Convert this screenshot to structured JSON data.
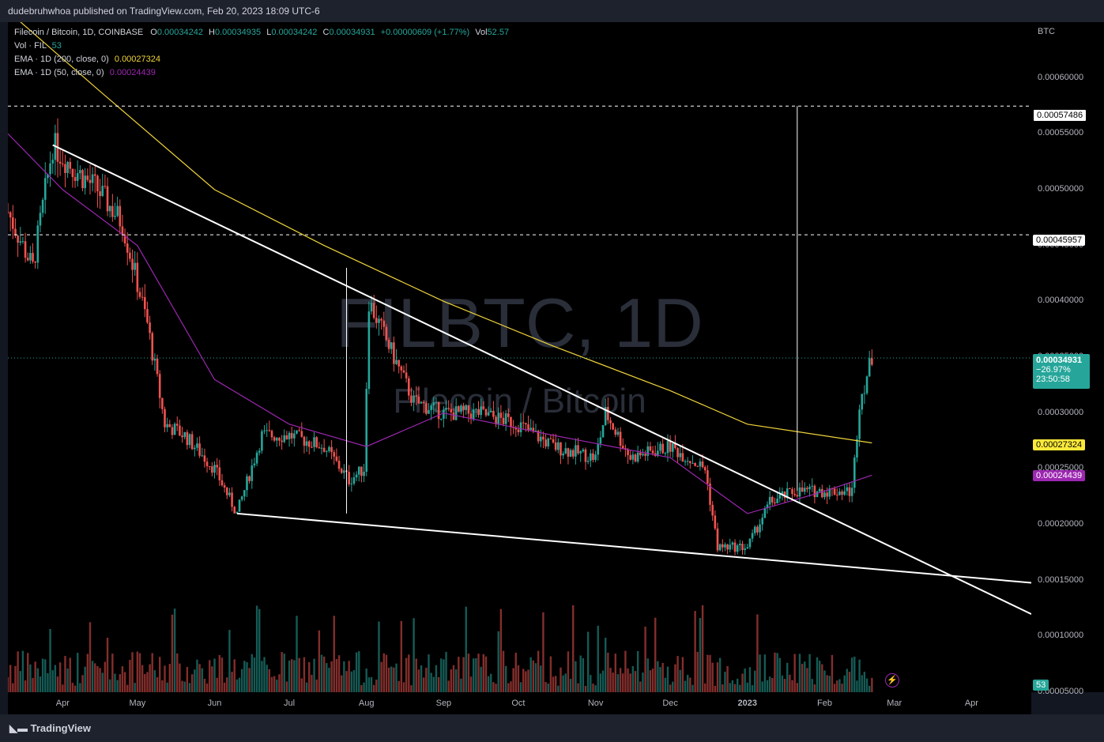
{
  "header": {
    "published": "dudebruhwhoa published on TradingView.com, Feb 20, 2023 18:09 UTC-6"
  },
  "legend": {
    "symbol": "Filecoin / Bitcoin, 1D, COINBASE",
    "o_label": "O",
    "o_value": "0.00034242",
    "h_label": "H",
    "h_value": "0.00034935",
    "l_label": "L",
    "l_value": "0.00034242",
    "c_label": "C",
    "c_value": "0.00034931",
    "change": "+0.00000609 (+1.77%)",
    "vol_label": "Vol",
    "vol_value": "52.57",
    "vol_fil_label": "Vol · FIL",
    "vol_fil_value": "53",
    "ema200_label": "EMA · 1D (200, close, 0)",
    "ema200_value": "0.00027324",
    "ema50_label": "EMA · 1D (50, close, 0)",
    "ema50_value": "0.00024439"
  },
  "watermark": {
    "title": "FILBTC, 1D",
    "subtitle": "Filecoin / Bitcoin"
  },
  "axis": {
    "currency": "BTC",
    "price_ticks": [
      "0.00060000",
      "0.00055000",
      "0.00050000",
      "0.00045000",
      "0.00040000",
      "0.00035000",
      "0.00030000",
      "0.00025000",
      "0.00020000",
      "0.00015000",
      "0.00010000",
      "0.00005000"
    ],
    "months": [
      "Apr",
      "May",
      "Jun",
      "Jul",
      "Aug",
      "Sep",
      "Oct",
      "Nov",
      "Dec",
      "2023",
      "Feb",
      "Mar",
      "Apr"
    ]
  },
  "tags": {
    "level_high": "0.00057486",
    "level_mid": "0.00045957",
    "last_price": "0.00034931",
    "last_change": "−26.97%",
    "countdown": "23:50:58",
    "ema200": "0.00027324",
    "ema50": "0.00024439",
    "volume": "53"
  },
  "footer": {
    "brand": "TradingView"
  },
  "colors": {
    "up": "#26a69a",
    "down": "#ef5350",
    "ema200": "#f0d43a",
    "ema50": "#9c27b0",
    "background": "#000000",
    "trendline": "#ffffff",
    "last_price_tag": "#26a69a",
    "ema200_tag": "#fbe93a",
    "ema50_tag": "#9c27b0"
  },
  "chart_data": {
    "type": "candlestick",
    "title": "FILBTC, 1D",
    "currency": "BTC",
    "ylim": [
      5e-05,
      0.00065
    ],
    "x_range": [
      "2022-03-10",
      "2023-04-25"
    ],
    "close_series": [
      [
        "2022-03-10",
        0.00048
      ],
      [
        "2022-03-20",
        0.00043
      ],
      [
        "2022-03-28",
        0.00054
      ],
      [
        "2022-04-05",
        0.00052
      ],
      [
        "2022-04-15",
        0.0005
      ],
      [
        "2022-04-25",
        0.00047
      ],
      [
        "2022-05-05",
        0.00038
      ],
      [
        "2022-05-12",
        0.00029
      ],
      [
        "2022-05-20",
        0.00028
      ],
      [
        "2022-06-01",
        0.00025
      ],
      [
        "2022-06-10",
        0.00021
      ],
      [
        "2022-06-20",
        0.00028
      ],
      [
        "2022-07-01",
        0.00028
      ],
      [
        "2022-07-15",
        0.00027
      ],
      [
        "2022-07-25",
        0.00024
      ],
      [
        "2022-07-31",
        0.00025
      ],
      [
        "2022-08-02",
        0.0004
      ],
      [
        "2022-08-10",
        0.00036
      ],
      [
        "2022-08-20",
        0.00031
      ],
      [
        "2022-09-01",
        0.0003
      ],
      [
        "2022-09-15",
        0.0003
      ],
      [
        "2022-10-01",
        0.00029
      ],
      [
        "2022-10-15",
        0.00027
      ],
      [
        "2022-11-01",
        0.00026
      ],
      [
        "2022-11-05",
        0.0003
      ],
      [
        "2022-11-15",
        0.00026
      ],
      [
        "2022-12-01",
        0.00027
      ],
      [
        "2022-12-15",
        0.00025
      ],
      [
        "2022-12-20",
        0.00018
      ],
      [
        "2023-01-01",
        0.00018
      ],
      [
        "2023-01-10",
        0.00022
      ],
      [
        "2023-01-20",
        0.00023
      ],
      [
        "2023-02-01",
        0.00023
      ],
      [
        "2023-02-12",
        0.00023
      ],
      [
        "2023-02-15",
        0.00031
      ],
      [
        "2023-02-20",
        0.00034931
      ]
    ],
    "ema200": [
      [
        "2022-03-10",
        0.00066
      ],
      [
        "2022-04-15",
        0.00059
      ],
      [
        "2022-06-01",
        0.0005
      ],
      [
        "2022-07-15",
        0.00045
      ],
      [
        "2022-09-01",
        0.0004
      ],
      [
        "2022-10-15",
        0.00036
      ],
      [
        "2022-12-01",
        0.00032
      ],
      [
        "2023-01-01",
        0.00029
      ],
      [
        "2023-02-20",
        0.00027324
      ]
    ],
    "ema50": [
      [
        "2022-03-10",
        0.00055
      ],
      [
        "2022-04-01",
        0.0005
      ],
      [
        "2022-05-01",
        0.00045
      ],
      [
        "2022-06-01",
        0.00033
      ],
      [
        "2022-07-01",
        0.00029
      ],
      [
        "2022-08-01",
        0.00027
      ],
      [
        "2022-09-01",
        0.0003
      ],
      [
        "2022-10-15",
        0.00028
      ],
      [
        "2022-12-01",
        0.00026
      ],
      [
        "2023-01-01",
        0.00021
      ],
      [
        "2023-02-01",
        0.00023
      ],
      [
        "2023-02-20",
        0.00024439
      ]
    ],
    "trendlines": [
      {
        "from": [
          "2022-03-28",
          0.00054
        ],
        "to": [
          "2023-04-25",
          0.00012
        ]
      },
      {
        "from": [
          "2022-06-10",
          0.00021
        ],
        "to": [
          "2023-04-25",
          0.000148
        ]
      }
    ],
    "horizontal_levels": [
      0.00057486,
      0.00045957
    ],
    "vertical_markers": [
      {
        "date": "2022-07-24",
        "from": 0.00021,
        "to": 0.00043
      },
      {
        "date": "2023-01-21",
        "from": 0.00023,
        "to": 0.00057486
      }
    ],
    "last_price": 0.00034931,
    "volume_last": 53
  }
}
